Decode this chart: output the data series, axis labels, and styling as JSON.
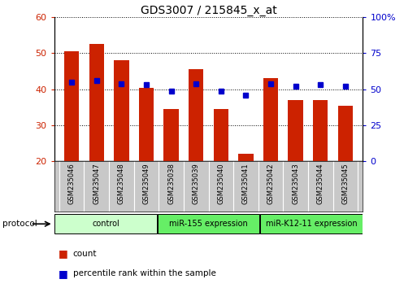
{
  "title": "GDS3007 / 215845_x_at",
  "samples": [
    "GSM235046",
    "GSM235047",
    "GSM235048",
    "GSM235049",
    "GSM235038",
    "GSM235039",
    "GSM235040",
    "GSM235041",
    "GSM235042",
    "GSM235043",
    "GSM235044",
    "GSM235045"
  ],
  "counts": [
    50.5,
    52.5,
    48.0,
    40.5,
    34.5,
    45.5,
    34.5,
    22.0,
    43.0,
    37.0,
    37.0,
    35.5
  ],
  "percentile_ranks_pct": [
    55,
    56,
    54,
    53,
    49,
    54,
    49,
    46,
    54,
    52,
    53,
    52
  ],
  "ylim_left": [
    20,
    60
  ],
  "ylim_right": [
    0,
    100
  ],
  "y_ticks_left": [
    20,
    30,
    40,
    50,
    60
  ],
  "y_ticks_right": [
    0,
    25,
    50,
    75,
    100
  ],
  "y_tick_right_labels": [
    "0",
    "25",
    "50",
    "75",
    "100%"
  ],
  "bar_color": "#cc2200",
  "dot_color": "#0000cc",
  "bar_bottom": 20,
  "groups": [
    {
      "label": "control",
      "start": 0,
      "end": 4,
      "light": true
    },
    {
      "label": "miR-155 expression",
      "start": 4,
      "end": 8,
      "light": false
    },
    {
      "label": "miR-K12-11 expression",
      "start": 8,
      "end": 12,
      "light": false
    }
  ],
  "protocol_label": "protocol",
  "legend_count_label": "count",
  "legend_pct_label": "percentile rank within the sample",
  "bg_color": "#ffffff",
  "light_green": "#ccffcc",
  "mid_green": "#66ee66",
  "gray_box": "#c8c8c8",
  "axis_color_left": "#cc2200",
  "axis_color_right": "#0000cc"
}
